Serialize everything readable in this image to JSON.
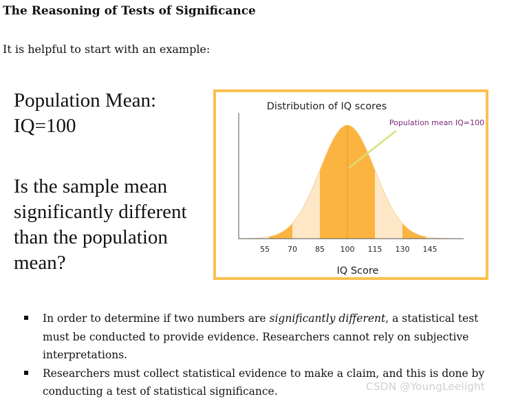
{
  "page": {
    "title": "The Reasoning of Tests of Significance",
    "intro": "It is helpful to start with an example:"
  },
  "slide": {
    "population_line1": "Population Mean:",
    "population_line2": "IQ=100",
    "question_lines": [
      "Is the sample mean",
      "significantly different",
      "than the population",
      "mean?"
    ]
  },
  "chart_data": {
    "type": "area",
    "title": "Distribution of IQ scores",
    "annotation": "Population mean IQ=100",
    "xlabel": "IQ Score",
    "ylabel": "",
    "x_ticks": [
      55,
      70,
      85,
      100,
      115,
      130,
      145
    ],
    "mean": 100,
    "sd": 15,
    "xlim": [
      40,
      160
    ],
    "shaded_bands_sd": [
      [
        -2,
        -1
      ],
      [
        1,
        2
      ],
      [
        -1,
        0
      ],
      [
        0,
        1
      ]
    ],
    "colors": {
      "inner": "#fbb440",
      "middle": "#fde7c7",
      "outer": "#fbb440",
      "border": "#fbc04f",
      "annotation": "#7a2a7a"
    }
  },
  "bullets": {
    "item1_pre": "In order to determine if two numbers are ",
    "item1_em": "significantly different",
    "item1_post": ", a statistical test must be conducted to provide evidence.  Researchers cannot rely on subjective interpretations.",
    "item2": "Researchers must collect statistical evidence to make a claim, and this is done by conducting a test of statistical significance."
  },
  "watermark": "CSDN @YoungLeelight"
}
